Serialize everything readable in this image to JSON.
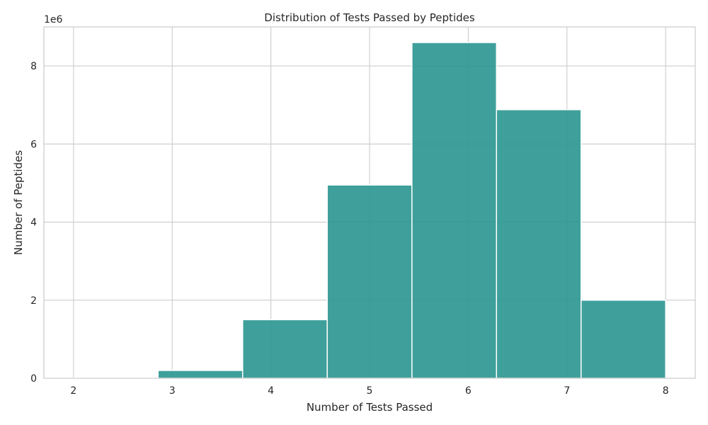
{
  "chart_data": {
    "type": "histogram",
    "title": "Distribution of Tests Passed by Peptides",
    "xlabel": "Number of Tests Passed",
    "ylabel": "Number of Peptides",
    "y_offset_label": "1e6",
    "xlim": [
      1.7,
      8.3
    ],
    "ylim": [
      0,
      9000000
    ],
    "x_ticks": [
      2,
      3,
      4,
      5,
      6,
      7,
      8
    ],
    "y_ticks": [
      0,
      2000000,
      4000000,
      6000000,
      8000000
    ],
    "y_tick_labels": [
      "0",
      "2",
      "4",
      "6",
      "8"
    ],
    "bins": [
      {
        "start": 2.0,
        "end": 2.857,
        "value": 10000
      },
      {
        "start": 2.857,
        "end": 3.714,
        "value": 200000
      },
      {
        "start": 3.714,
        "end": 4.571,
        "value": 1500000
      },
      {
        "start": 4.571,
        "end": 5.429,
        "value": 4950000
      },
      {
        "start": 5.429,
        "end": 6.286,
        "value": 8600000
      },
      {
        "start": 6.286,
        "end": 7.143,
        "value": 6880000
      },
      {
        "start": 7.143,
        "end": 8.0,
        "value": 2000000
      }
    ],
    "bar_color": "#2a9690",
    "grid": true,
    "legend": "none"
  }
}
